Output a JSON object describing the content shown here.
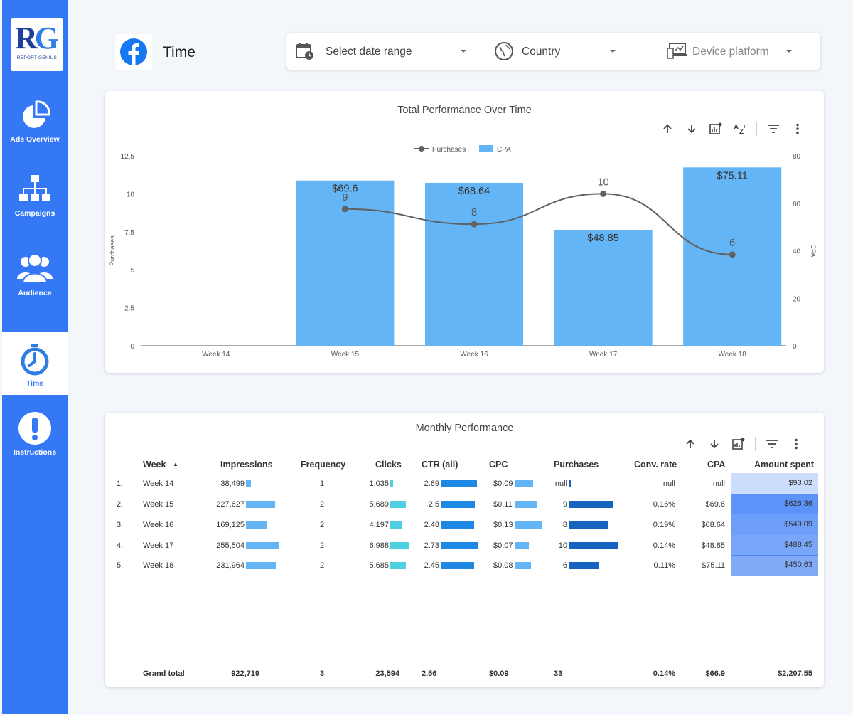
{
  "sidebar": {
    "logo_text": "RG",
    "logo_sub": "REPORT GENIUS",
    "items": [
      {
        "label": "Ads Overview",
        "icon": "pie-chart-icon"
      },
      {
        "label": "Campaigns",
        "icon": "sitemap-icon"
      },
      {
        "label": "Audience",
        "icon": "users-icon"
      },
      {
        "label": "Time",
        "icon": "stopwatch-icon"
      },
      {
        "label": "Instructions",
        "icon": "exclamation-icon"
      }
    ],
    "active": "Time"
  },
  "header": {
    "title": "Time",
    "filters": {
      "date": "Select date range",
      "country": "Country",
      "device": "Device platform"
    }
  },
  "colors": {
    "sidebar": "#3478f6",
    "bar": "#64b5f6",
    "line": "#616161",
    "purchases_bar": "#1565c0",
    "clicks_bar": "#4dd0e1",
    "ctr_bar": "#1e88e5"
  },
  "chart_card": {
    "title": "Total Performance Over Time"
  },
  "chart_data": {
    "type": "bar",
    "title": "Total Performance Over Time",
    "categories": [
      "Week 14",
      "Week 15",
      "Week 16",
      "Week 17",
      "Week 18"
    ],
    "series": [
      {
        "name": "CPA",
        "type": "bar",
        "axis": "right",
        "values": [
          null,
          69.6,
          68.64,
          48.85,
          75.11
        ],
        "labels": [
          "",
          "$69.6",
          "$68.64",
          "$48.85",
          "$75.11"
        ]
      },
      {
        "name": "Purchases",
        "type": "line",
        "axis": "left",
        "values": [
          null,
          9,
          8,
          10,
          6
        ],
        "labels": [
          "",
          "9",
          "8",
          "10",
          "6"
        ]
      }
    ],
    "ylabel": "Purchases",
    "y2label": "CPA",
    "ylim": [
      0,
      12.5
    ],
    "y2lim": [
      0,
      80
    ],
    "yticks": [
      "0",
      "2.5",
      "5",
      "7.5",
      "10",
      "12.5"
    ],
    "y2ticks": [
      "0",
      "20",
      "40",
      "60",
      "80"
    ],
    "legend": "top-center"
  },
  "table_card": {
    "title": "Monthly Performance",
    "columns": [
      "Week",
      "Impressions",
      "Frequency",
      "Clicks",
      "CTR (all)",
      "CPC",
      "Purchases",
      "Conv. rate",
      "CPA",
      "Amount spent"
    ],
    "sort_indicator": "▲",
    "rows": [
      {
        "n": "1.",
        "week": "Week 14",
        "impressions": "38,499",
        "frequency": "1",
        "clicks": "1,035",
        "ctr": "2.69",
        "cpc": "$0.09",
        "purchases": "null",
        "conv": "null",
        "cpa": "null",
        "amount": "$93.02"
      },
      {
        "n": "2.",
        "week": "Week 15",
        "impressions": "227,627",
        "frequency": "2",
        "clicks": "5,689",
        "ctr": "2.5",
        "cpc": "$0.11",
        "purchases": "9",
        "conv": "0.16%",
        "cpa": "$69.6",
        "amount": "$626.36"
      },
      {
        "n": "3.",
        "week": "Week 16",
        "impressions": "169,125",
        "frequency": "2",
        "clicks": "4,197",
        "ctr": "2.48",
        "cpc": "$0.13",
        "purchases": "8",
        "conv": "0.19%",
        "cpa": "$68.64",
        "amount": "$549.09"
      },
      {
        "n": "4.",
        "week": "Week 17",
        "impressions": "255,504",
        "frequency": "2",
        "clicks": "6,988",
        "ctr": "2.73",
        "cpc": "$0.07",
        "purchases": "10",
        "conv": "0.14%",
        "cpa": "$48.85",
        "amount": "$488.45"
      },
      {
        "n": "5.",
        "week": "Week 18",
        "impressions": "231,964",
        "frequency": "2",
        "clicks": "5,685",
        "ctr": "2.45",
        "cpc": "$0.08",
        "purchases": "6",
        "conv": "0.11%",
        "cpa": "$75.11",
        "amount": "$450.63"
      }
    ],
    "bar_values": {
      "impressions": [
        38499,
        227627,
        169125,
        255504,
        231964
      ],
      "clicks": [
        1035,
        5689,
        4197,
        6988,
        5685
      ],
      "ctr": [
        2.69,
        2.5,
        2.48,
        2.73,
        2.45
      ],
      "cpc": [
        0.09,
        0.11,
        0.13,
        0.07,
        0.08
      ],
      "purchases": [
        0,
        9,
        8,
        10,
        6
      ],
      "amount": [
        93.02,
        626.36,
        549.09,
        488.45,
        450.63
      ]
    },
    "totals": {
      "label": "Grand total",
      "impressions": "922,719",
      "frequency": "3",
      "clicks": "23,594",
      "ctr": "2.56",
      "cpc": "$0.09",
      "purchases": "33",
      "conv": "0.14%",
      "cpa": "$66.9",
      "amount": "$2,207.55"
    }
  }
}
